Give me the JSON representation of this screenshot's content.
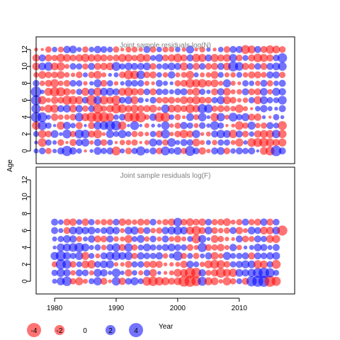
{
  "chart_data": {
    "type": "scatter",
    "title": "",
    "ylabel": "Age",
    "xlabel": "",
    "colors": {
      "positive": "#0000ff",
      "negative": "#ff0000",
      "alpha": 0.55
    },
    "x_axis": {
      "range": [
        1977,
        2019
      ],
      "ticks": [
        1980,
        1990,
        2000,
        2010
      ]
    },
    "panels": [
      {
        "title": "Joint sample residuals log(N)",
        "ylim": [
          -1.5,
          13.5
        ],
        "y_ticks": [
          0,
          2,
          4,
          6,
          8,
          10,
          12
        ],
        "ages": [
          0,
          1,
          2,
          3,
          4,
          5,
          6,
          7,
          8,
          9,
          10,
          11,
          12
        ],
        "years": [
          1977,
          1978,
          1979,
          1980,
          1981,
          1982,
          1983,
          1984,
          1985,
          1986,
          1987,
          1988,
          1989,
          1990,
          1991,
          1992,
          1993,
          1994,
          1995,
          1996,
          1997,
          1998,
          1999,
          2000,
          2001,
          2002,
          2003,
          2004,
          2005,
          2006,
          2007,
          2008,
          2009,
          2010,
          2011,
          2012,
          2013,
          2014,
          2015,
          2016,
          2017
        ],
        "residuals": [
          [
            0.5,
            0.9,
            -0.8,
            0.4,
            1.0,
            2.1,
            1.1,
            0.6,
            -0.2,
            0.3,
            1.2,
            0.8,
            1.0,
            -1.6,
            0.5,
            -0.9,
            0.8,
            1.7,
            0.5,
            1.0,
            -0.9,
            1.6,
            0.8,
            1.2,
            -0.8,
            2.0,
            0.9,
            -1.1,
            -0.4,
            1.0,
            1.2,
            -0.9,
            0.6,
            1.0,
            0.8,
            1.0,
            0.2,
            -1.2,
            -1.6,
            2.2,
            1.0
          ],
          [
            0.3,
            -1.5,
            0.8,
            0.4,
            -0.9,
            -0.2,
            -1.0,
            1.0,
            1.3,
            -0.4,
            1.1,
            -0.9,
            0.7,
            -0.2,
            -0.6,
            -0.6,
            -0.8,
            -0.2,
            -0.5,
            1.3,
            0.8,
            -0.8,
            1.5,
            0.5,
            1.0,
            0.9,
            -1.2,
            -0.5,
            0.5,
            -0.6,
            0.8,
            0.8,
            -0.5,
            -1.3,
            0.4,
            -1.5,
            -1.6,
            -1.7,
            -1.4,
            -1.0,
            -1.3
          ],
          [
            0.7,
            -1.3,
            -0.9,
            1.2,
            0.3,
            1.6,
            -0.8,
            1.6,
            1.5,
            -1.0,
            -1.5,
            -0.3,
            1.3,
            0.7,
            1.4,
            0.7,
            -0.8,
            -0.6,
            -0.4,
            0.8,
            -1.0,
            1.6,
            -0.4,
            -0.9,
            -1.4,
            -1.0,
            1.3,
            -0.3,
            -0.5,
            1.0,
            1.4,
            1.2,
            -1.4,
            1.0,
            -0.9,
            0.6,
            -1.1,
            -1.3,
            -1.3,
            1.4,
            -1.4
          ],
          [
            -1.4,
            1.7,
            0.8,
            0.2,
            -1.3,
            1.2,
            0.6,
            -1.0,
            0.2,
            -1.0,
            1.3,
            1.5,
            2.0,
            2.0,
            -1.4,
            0.2,
            1.6,
            0.2,
            -0.5,
            0.3,
            0.3,
            1.4,
            -0.4,
            -0.8,
            1.1,
            0.8,
            -0.5,
            0.9,
            0.4,
            1.6,
            0.8,
            -0.2,
            -0.3,
            -1.5,
            -0.8,
            1.3,
            -0.6,
            -0.8,
            1.0,
            0.7,
            -1.6
          ],
          [
            2.1,
            1.9,
            0.5,
            -1.1,
            -0.6,
            -0.6,
            -0.9,
            1.5,
            -1.3,
            -1.9,
            -2.0,
            -2.1,
            -1.4,
            0.6,
            0.9,
            -1.7,
            -1.9,
            -2.2,
            -0.6,
            1.1,
            -1.8,
            -1.9,
            0.6,
            -0.8,
            -0.3,
            1.2,
            -0.7,
            1.4,
            0.3,
            -1.4,
            1.4,
            -0.5,
            1.6,
            0.8,
            1.3,
            -1.0,
            -1.1,
            0.3,
            -0.2,
            0.8,
            0.3
          ],
          [
            1.7,
            -0.5,
            -1.3,
            -1.4,
            1.0,
            1.2,
            -1.2,
            1.1,
            -0.8,
            0.9,
            -1.9,
            -0.8,
            -1.1,
            -1.8,
            -1.5,
            -1.0,
            -1.3,
            -1.0,
            -1.0,
            -1.2,
            -0.4,
            1.4,
            -1.2,
            -1.2,
            -0.9,
            -1.6,
            -1.1,
            1.7,
            1.5,
            -0.8,
            -1.0,
            -0.8,
            -0.6,
            -1.4,
            -0.5,
            -0.2,
            0.6,
            1.1,
            0.5,
            0.3,
            1.0
          ],
          [
            2.0,
            -1.4,
            -0.5,
            -1.1,
            -0.9,
            -1.7,
            -1.5,
            -1.3,
            0.9,
            -2.2,
            1.4,
            -1.5,
            -1.1,
            -1.8,
            0.9,
            1.2,
            -1.3,
            0.7,
            0.3,
            0.9,
            -0.8,
            -0.9,
            -1.0,
            -0.6,
            -1.2,
            -1.0,
            -1.4,
            -1.0,
            -0.9,
            0.8,
            1.3,
            -1.3,
            -0.9,
            -0.4,
            -0.6,
            0.8,
            -1.3,
            1.3,
            0.8,
            0.7,
            1.5
          ],
          [
            2.2,
            0.4,
            -1.3,
            -1.8,
            -1.7,
            -1.1,
            -0.6,
            0.8,
            -1.3,
            1.0,
            -1.5,
            1.3,
            1.3,
            1.0,
            -1.2,
            -1.6,
            -1.1,
            -1.0,
            0.9,
            -1.0,
            0.9,
            0.8,
            0.5,
            0.9,
            1.0,
            -0.8,
            -1.3,
            0.8,
            0.4,
            -1.0,
            1.1,
            -1.2,
            -0.5,
            -0.6,
            1.0,
            -0.9,
            -1.0,
            1.2,
            -0.6,
            1.3,
            1.1
          ],
          [
            0.9,
            -0.6,
            -1.0,
            -1.4,
            -0.6,
            -0.9,
            0.9,
            0.8,
            -0.4,
            0.4,
            1.3,
            -0.9,
            0.8,
            -0.4,
            0.4,
            1.0,
            0.9,
            0.9,
            -0.5,
            -0.3,
            1.0,
            0.5,
            0.3,
            -0.8,
            -1.0,
            -1.6,
            -1.3,
            -1.5,
            -0.9,
            -1.2,
            -0.5,
            1.3,
            -0.5,
            -0.3,
            0.8,
            0.6,
            -0.6,
            1.0,
            -0.8,
            0.6,
            1.0
          ],
          [
            -0.6,
            -1.2,
            -0.9,
            -0.9,
            -1.2,
            -0.6,
            -0.4,
            -0.9,
            0.5,
            -0.9,
            -1.3,
            -0.5,
            0.3,
            0.5,
            -0.9,
            -1.7,
            -1.5,
            1.5,
            -0.9,
            -1.0,
            0.6,
            -0.6,
            1.1,
            -0.5,
            -0.7,
            -1.3,
            0.5,
            -0.5,
            -0.6,
            -1.2,
            0.7,
            -0.5,
            -0.6,
            0.7,
            -0.6,
            -1.0,
            -1.0,
            -0.7,
            1.0,
            1.0,
            -0.8
          ],
          [
            -1.2,
            1.2,
            1.5,
            -1.2,
            -1.4,
            -0.5,
            0.9,
            0.8,
            -0.8,
            1.0,
            -1.0,
            -1.1,
            -1.2,
            1.6,
            0.8,
            1.2,
            1.0,
            1.0,
            1.2,
            -0.9,
            0.7,
            0.9,
            1.2,
            1.0,
            -1.3,
            0.9,
            -1.0,
            0.9,
            -0.9,
            -1.0,
            1.0,
            -1.2,
            2.0,
            1.5,
            -1.0,
            -0.9,
            0.9,
            -1.0,
            1.0,
            1.2,
            1.5
          ],
          [
            -1.1,
            1.0,
            -1.0,
            -0.8,
            -1.4,
            -1.2,
            -0.9,
            -1.1,
            -1.4,
            -1.1,
            -1.2,
            -1.0,
            -0.8,
            -0.9,
            -1.3,
            -1.2,
            -0.8,
            -1.4,
            -1.2,
            0.7,
            1.2,
            -0.9,
            -1.1,
            -1.5,
            -1.0,
            1.0,
            -1.4,
            -1.3,
            1.0,
            -1.3,
            -1.0,
            -1.2,
            1.3,
            -0.9,
            0.7,
            -1.0,
            -1.5,
            -1.3,
            -1.0,
            0.9,
            1.8
          ],
          [
            -0.3,
            -0.2,
            -0.8,
            0.6,
            -0.7,
            1.1,
            1.2,
            0.5,
            -0.8,
            0.6,
            1.1,
            0.9,
            0.7,
            -0.8,
            -0.3,
            -0.7,
            -0.7,
            -0.4,
            1.0,
            -0.8,
            0.6,
            -0.7,
            -0.6,
            0.6,
            -0.4,
            1.3,
            -0.3,
            -0.7,
            0.4,
            -0.3,
            0.6,
            -0.9,
            1.0,
            1.0,
            -1.6,
            -1.3,
            1.0,
            -1.0,
            -1.4,
            -1.2,
            -0.9
          ]
        ]
      },
      {
        "title": "Joint sample residuals log(F)",
        "ylim": [
          -1.5,
          13.5
        ],
        "y_ticks": [
          0,
          2,
          4,
          6,
          8,
          10,
          12
        ],
        "ages": [
          0,
          1,
          2,
          3,
          4,
          5,
          6,
          7
        ],
        "years": [
          1977,
          1978,
          1979,
          1980,
          1981,
          1982,
          1983,
          1984,
          1985,
          1986,
          1987,
          1988,
          1989,
          1990,
          1991,
          1992,
          1993,
          1994,
          1995,
          1996,
          1997,
          1998,
          1999,
          2000,
          2001,
          2002,
          2003,
          2004,
          2005,
          2006,
          2007,
          2008,
          2009,
          2010,
          2011,
          2012,
          2013,
          2014,
          2015,
          2016,
          2017
        ],
        "residuals": [
          [
            null,
            null,
            null,
            0.5,
            1.3,
            1.8,
            -0.8,
            -1.3,
            -0.5,
            0.7,
            1.4,
            -1.0,
            -0.3,
            1.5,
            -1.1,
            0.9,
            1.3,
            0.7,
            -1.6,
            -1.8,
            -1.5,
            -1.3,
            -1.0,
            -1.2,
            -2.3,
            -2.4,
            -1.8,
            1.6,
            -1.3,
            -1.2,
            -0.4,
            -1.4,
            -0.8,
            0.7,
            -1.0,
            2.1,
            2.4,
            2.4,
            -2.4,
            -1.7,
            null
          ],
          [
            null,
            null,
            null,
            0.8,
            1.4,
            1.1,
            -0.6,
            1.0,
            0.9,
            -0.5,
            1.3,
            1.1,
            0.4,
            1.5,
            0.4,
            -1.1,
            0.6,
            -0.5,
            0.9,
            -1.2,
            0.3,
            -0.3,
            -0.5,
            -1.3,
            -1.2,
            -2.2,
            -2.0,
            1.1,
            -0.7,
            -1.1,
            -1.9,
            -1.3,
            -1.4,
            1.2,
            1.1,
            1.3,
            1.9,
            2.2,
            1.7,
            0.7,
            null
          ],
          [
            null,
            null,
            null,
            -0.7,
            2.0,
            1.6,
            -0.9,
            0.7,
            -1.2,
            -1.4,
            0.9,
            1.2,
            1.3,
            -0.4,
            -0.4,
            -1.0,
            0.8,
            0.9,
            -0.9,
            -1.1,
            -1.0,
            -0.3,
            -0.4,
            -0.5,
            -1.1,
            1.1,
            0.7,
            -0.6,
            -1.3,
            -1.6,
            -1.4,
            -0.9,
            0.8,
            1.0,
            1.3,
            1.2,
            -1.4,
            -1.2,
            0.9,
            -1.6,
            null
          ],
          [
            null,
            null,
            null,
            1.3,
            2.0,
            1.2,
            0.8,
            1.3,
            -1.3,
            0.7,
            -0.5,
            1.0,
            1.4,
            1.6,
            1.2,
            1.4,
            -0.8,
            1.1,
            0.9,
            0.8,
            1.1,
            -0.6,
            0.6,
            1.8,
            -0.8,
            0.7,
            -0.8,
            0.5,
            1.0,
            -1.2,
            -0.6,
            1.3,
            0.7,
            0.8,
            1.0,
            -1.0,
            1.0,
            0.9,
            1.1,
            1.2,
            null
          ],
          [
            null,
            null,
            null,
            0.3,
            1.3,
            1.3,
            1.5,
            1.8,
            1.3,
            0.5,
            0.8,
            -0.6,
            1.0,
            1.4,
            -1.0,
            1.4,
            -0.8,
            0.7,
            1.2,
            0.8,
            0.7,
            1.0,
            1.2,
            0.9,
            0.8,
            -0.9,
            -0.5,
            1.7,
            -0.9,
            -0.8,
            -1.1,
            -0.5,
            1.1,
            -0.6,
            0.3,
            0.5,
            1.2,
            1.0,
            0.5,
            1.0,
            null
          ],
          [
            null,
            null,
            null,
            0.5,
            0.8,
            1.2,
            1.1,
            -0.7,
            0.5,
            1.1,
            -1.0,
            -0.9,
            1.0,
            -0.6,
            -0.5,
            -1.3,
            0.7,
            1.2,
            -0.6,
            0.9,
            -0.5,
            1.0,
            -0.6,
            -1.0,
            -0.5,
            0.7,
            -1.6,
            1.3,
            0.3,
            -1.2,
            -0.8,
            -0.4,
            -0.3,
            1.0,
            -0.9,
            -0.7,
            1.0,
            0.8,
            -1.2,
            -1.3,
            null
          ],
          [
            null,
            null,
            null,
            1.0,
            0.5,
            -1.0,
            1.2,
            1.3,
            1.1,
            1.2,
            0.6,
            0.9,
            1.3,
            1.1,
            -0.5,
            1.2,
            1.3,
            -0.9,
            1.0,
            -0.6,
            -0.8,
            1.1,
            1.3,
            1.5,
            1.2,
            -1.3,
            -1.7,
            -1.0,
            1.2,
            -0.9,
            -0.6,
            -0.8,
            1.0,
            -1.1,
            -0.5,
            1.2,
            1.0,
            -1.2,
            -1.2,
            1.2,
            -2.0
          ],
          [
            null,
            null,
            null,
            1.0,
            0.6,
            -1.0,
            -1.1,
            0.7,
            -1.1,
            0.8,
            -0.6,
            -0.8,
            -0.8,
            0.9,
            -1.1,
            -0.8,
            -0.6,
            -1.0,
            -0.8,
            0.9,
            -0.5,
            -0.8,
            -1.1,
            1.5,
            -0.9,
            -1.2,
            -0.9,
            -1.1,
            0.9,
            -0.8,
            -0.9,
            -1.2,
            -0.5,
            -0.8,
            1.0,
            -0.8,
            -1.0,
            1.1,
            -1.0,
            0.9,
            null
          ]
        ]
      }
    ],
    "legend": {
      "items": [
        {
          "value": -4,
          "label": "-4"
        },
        {
          "value": -2,
          "label": "-2"
        },
        {
          "value": 0,
          "label": "0"
        },
        {
          "value": 2,
          "label": "2"
        },
        {
          "value": 4,
          "label": "4"
        }
      ],
      "title": "Year",
      "placement": "bottom-left"
    }
  }
}
